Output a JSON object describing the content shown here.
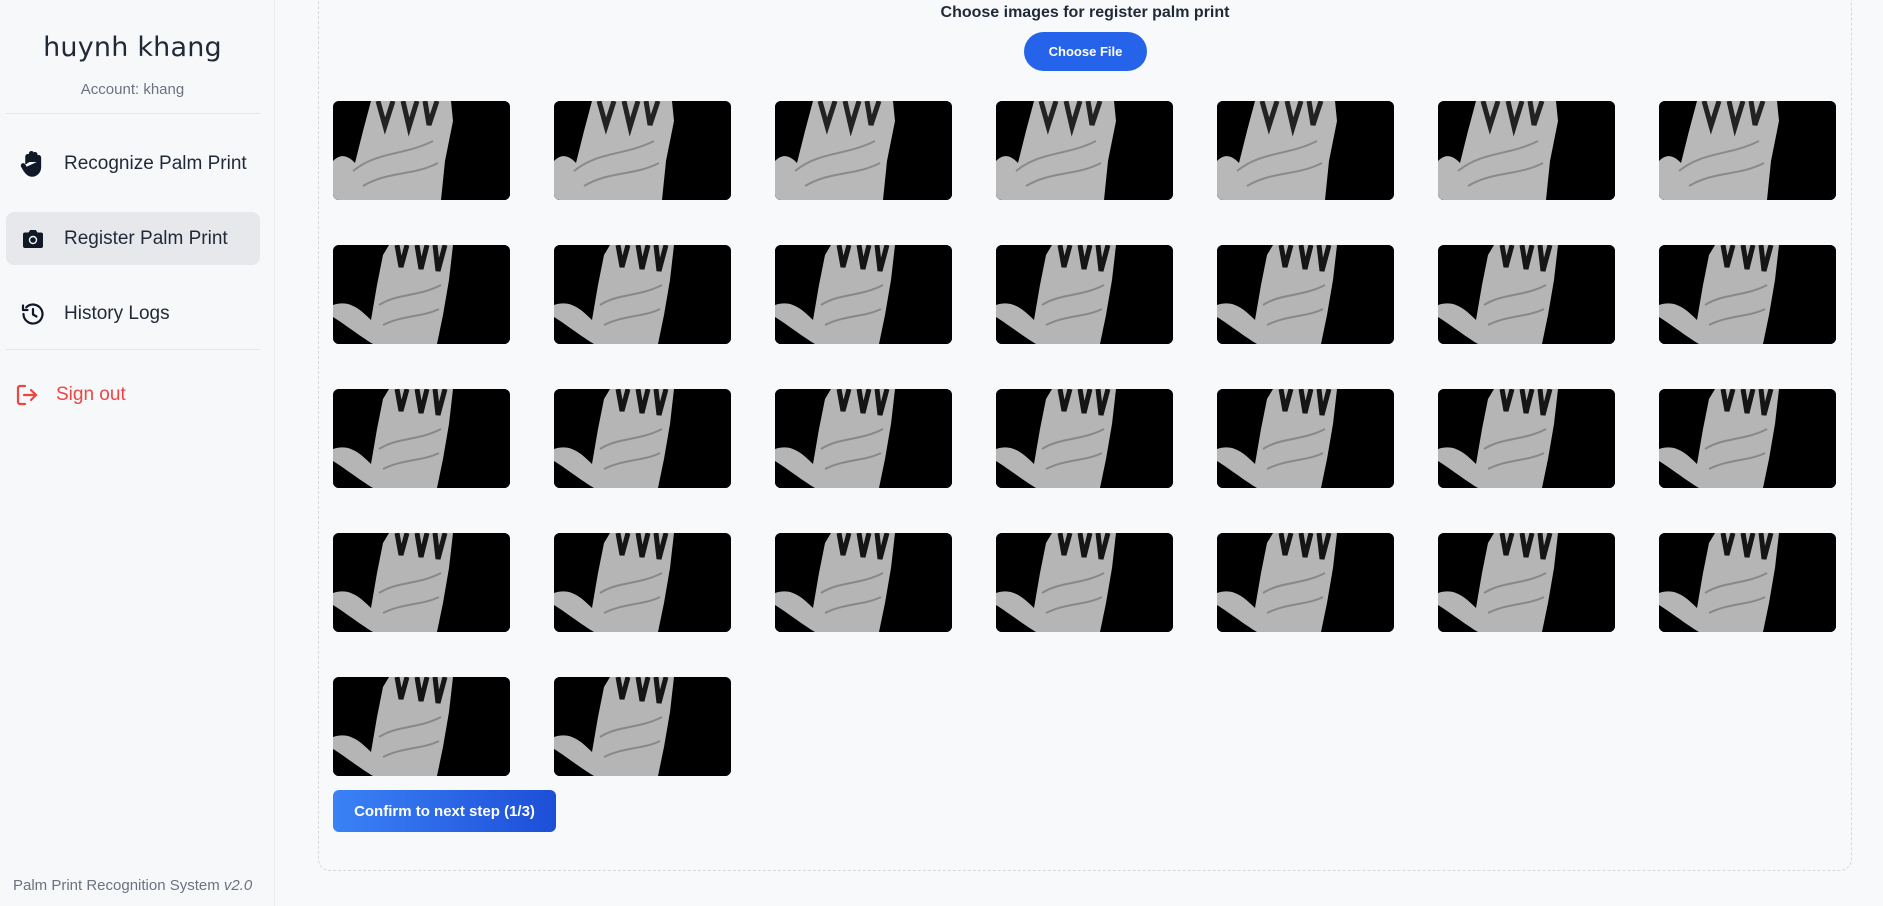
{
  "sidebar": {
    "user_name": "huynh khang",
    "account": "Account: khang",
    "items": [
      {
        "label": "Recognize Palm Print",
        "icon": "hand-icon",
        "active": false
      },
      {
        "label": "Register Palm Print",
        "icon": "camera-icon",
        "active": true
      },
      {
        "label": "History Logs",
        "icon": "history-icon",
        "active": false
      }
    ],
    "signout_label": "Sign out",
    "footer_text": "Palm Print Recognition System ",
    "footer_version": "v2.0"
  },
  "main": {
    "choose_title": "Choose images for register palm print",
    "choose_button": "Choose File",
    "image_count": 30,
    "confirm_button": "Confirm to next step (1/3)"
  },
  "colors": {
    "accent": "#2563eb",
    "signout": "#ef4444",
    "active_nav_bg": "#e7e8eb"
  }
}
